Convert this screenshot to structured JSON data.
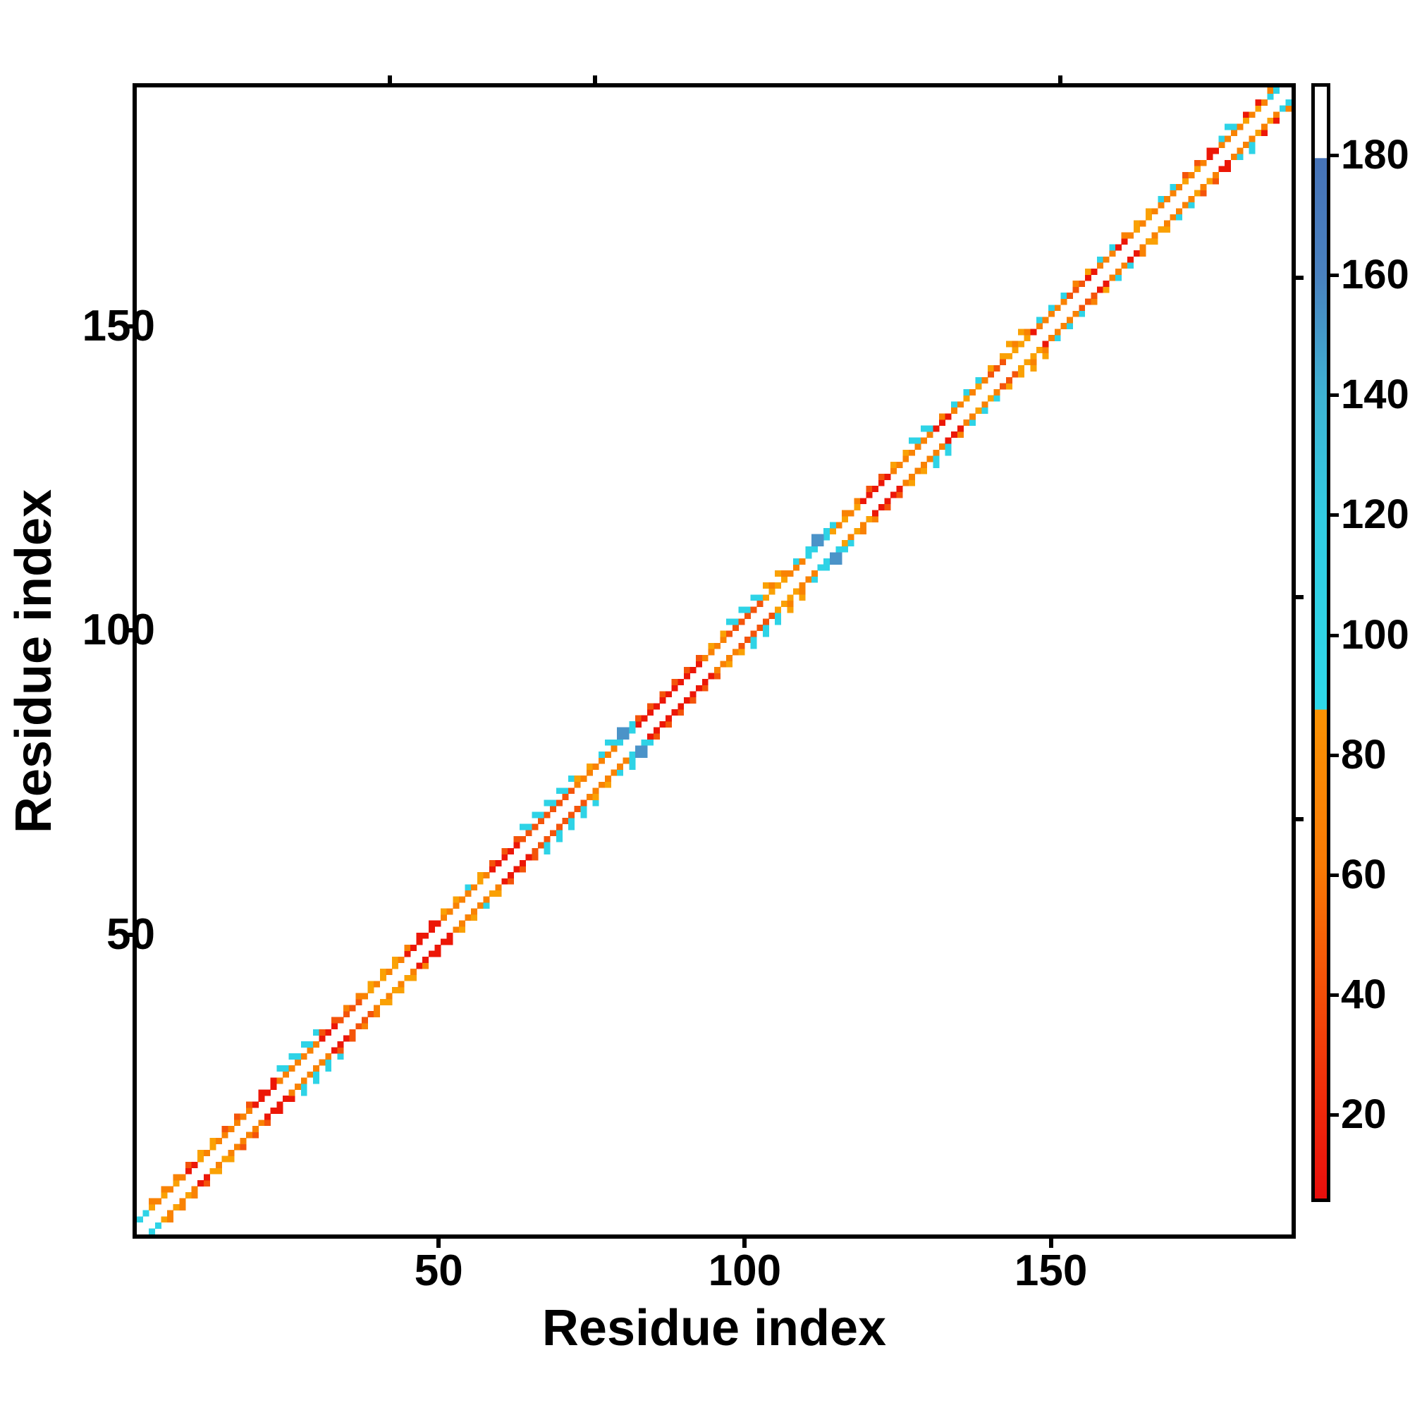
{
  "figure": {
    "background": "#ffffff"
  },
  "chart_data": {
    "type": "heatmap",
    "title": "",
    "xlabel": "Residue index",
    "ylabel": "Residue index",
    "n_residues": 190,
    "x_range": [
      0,
      190
    ],
    "y_range": [
      0,
      190
    ],
    "x_ticks": [
      {
        "value": 50,
        "label": "50"
      },
      {
        "value": 100,
        "label": "100"
      },
      {
        "value": 150,
        "label": "150"
      }
    ],
    "y_ticks": [
      {
        "value": 50,
        "label": "50"
      },
      {
        "value": 100,
        "label": "100"
      },
      {
        "value": 150,
        "label": "150"
      }
    ],
    "top_minor_ticks": [
      42,
      75.5,
      151.5
    ],
    "right_minor_ticks": [
      69,
      105.5,
      158
    ],
    "grid": false,
    "description": "Residue-residue contact map: near-diagonal contacts (|i-j| of 2-4) colored red/orange/cyan/blue; main diagonal empty (white).",
    "palette": {
      "red": "#EC1707",
      "orangered": "#F4540A",
      "orange": "#F98203",
      "amber": "#FAA104",
      "cyan": "#2ED3E6",
      "blue": "#4B93C8"
    },
    "band_segments": [
      {
        "from": 0,
        "to": 2,
        "c2": "cyan",
        "c3": null,
        "c4": null
      },
      {
        "from": 2,
        "to": 8,
        "c2": "mix",
        "c3": "orange",
        "c4": null
      },
      {
        "from": 8,
        "to": 10,
        "c2": "red",
        "c3": "orangered",
        "c4": null
      },
      {
        "from": 10,
        "to": 14,
        "c2": "mix",
        "c3": "amber",
        "c4": null
      },
      {
        "from": 14,
        "to": 19,
        "c2": "orange",
        "c3": "orangered",
        "c4": null
      },
      {
        "from": 19,
        "to": 23,
        "c2": "red",
        "c3": "red",
        "c4": null
      },
      {
        "from": 23,
        "to": 30,
        "c2": "orange",
        "c3": "cyan",
        "c4": "cyan"
      },
      {
        "from": 30,
        "to": 33,
        "c2": "red",
        "c3": "orangered",
        "c4": null
      },
      {
        "from": 33,
        "to": 37,
        "c2": "orangered",
        "c3": "orange",
        "c4": null
      },
      {
        "from": 37,
        "to": 44,
        "c2": "mix",
        "c3": "amber",
        "c4": null
      },
      {
        "from": 44,
        "to": 45,
        "c2": "red",
        "c3": "orange",
        "c4": null
      },
      {
        "from": 45,
        "to": 50,
        "c2": "red",
        "c3": "red",
        "c4": null
      },
      {
        "from": 50,
        "to": 53,
        "c2": "orange",
        "c3": "amber",
        "c4": null
      },
      {
        "from": 53,
        "to": 55,
        "c2": "orange",
        "c3": "cyan",
        "c4": null
      },
      {
        "from": 55,
        "to": 58,
        "c2": "mix",
        "c3": "amber",
        "c4": null
      },
      {
        "from": 58,
        "to": 63,
        "c2": "red",
        "c3": "orangered",
        "c4": null
      },
      {
        "from": 63,
        "to": 72,
        "c2": "orangered",
        "c3": "cyan",
        "c4": "cyan"
      },
      {
        "from": 72,
        "to": 76,
        "c2": "orange",
        "c3": "amber",
        "c4": null
      },
      {
        "from": 76,
        "to": 79,
        "c2": "orange",
        "c3": "cyan",
        "c4": "cyan"
      },
      {
        "from": 79,
        "to": 82,
        "c2": "cyan",
        "c3": "blue",
        "c4": null
      },
      {
        "from": 82,
        "to": 93,
        "c2": "red",
        "c3": "orangered",
        "c4": null
      },
      {
        "from": 93,
        "to": 97,
        "c2": "orange",
        "c3": "amber",
        "c4": null
      },
      {
        "from": 97,
        "to": 103,
        "c2": "orangered",
        "c3": "cyan",
        "c4": "cyan"
      },
      {
        "from": 103,
        "to": 107,
        "c2": "amber",
        "c3": "orange",
        "c4": "amber"
      },
      {
        "from": 107,
        "to": 110,
        "c2": "orange",
        "c3": "cyan",
        "c4": null
      },
      {
        "from": 110,
        "to": 114,
        "c2": "cyan",
        "c3": "blue",
        "c4": null
      },
      {
        "from": 114,
        "to": 119,
        "c2": "mix",
        "c3": "orange",
        "c4": null
      },
      {
        "from": 119,
        "to": 124,
        "c2": "red",
        "c3": "orangered",
        "c4": null
      },
      {
        "from": 124,
        "to": 127,
        "c2": "orange",
        "c3": "amber",
        "c4": null
      },
      {
        "from": 127,
        "to": 131,
        "c2": "orange",
        "c3": "cyan",
        "c4": "cyan"
      },
      {
        "from": 131,
        "to": 134,
        "c2": "red",
        "c3": "orange",
        "c4": null
      },
      {
        "from": 134,
        "to": 136,
        "c2": "orange",
        "c3": "cyan",
        "c4": null
      },
      {
        "from": 136,
        "to": 140,
        "c2": "mix",
        "c3": "cyan",
        "c4": null
      },
      {
        "from": 140,
        "to": 143,
        "c2": "orangered",
        "c3": "amber",
        "c4": null
      },
      {
        "from": 143,
        "to": 147,
        "c2": "amber",
        "c3": "orange",
        "c4": "amber"
      },
      {
        "from": 147,
        "to": 148,
        "c2": "red",
        "c3": "orange",
        "c4": null
      },
      {
        "from": 148,
        "to": 153,
        "c2": "orange",
        "c3": "cyan",
        "c4": null
      },
      {
        "from": 153,
        "to": 156,
        "c2": "orangered",
        "c3": "orange",
        "c4": null
      },
      {
        "from": 156,
        "to": 158,
        "c2": "red",
        "c3": "amber",
        "c4": null
      },
      {
        "from": 158,
        "to": 161,
        "c2": "orange",
        "c3": "cyan",
        "c4": null
      },
      {
        "from": 161,
        "to": 163,
        "c2": "red",
        "c3": "orange",
        "c4": null
      },
      {
        "from": 163,
        "to": 167,
        "c2": "mix",
        "c3": "amber",
        "c4": null
      },
      {
        "from": 167,
        "to": 171,
        "c2": "orange",
        "c3": "cyan",
        "c4": null
      },
      {
        "from": 171,
        "to": 176,
        "c2": "mix",
        "c3": "orangered",
        "c4": null
      },
      {
        "from": 176,
        "to": 178,
        "c2": "red",
        "c3": "red",
        "c4": null
      },
      {
        "from": 178,
        "to": 181,
        "c2": "orange",
        "c3": "cyan",
        "c4": "cyan"
      },
      {
        "from": 181,
        "to": 186,
        "c2": "mix",
        "c3": "red",
        "c4": null
      },
      {
        "from": 186,
        "to": 188,
        "c2": "cyan",
        "c3": "orange",
        "c4": null
      },
      {
        "from": 188,
        "to": 190,
        "c2": "amber",
        "c3": null,
        "c4": null
      }
    ],
    "patches": [
      [
        78,
        81,
        "cyan"
      ],
      [
        79,
        82,
        "blue"
      ],
      [
        80,
        83,
        "blue"
      ],
      [
        79,
        83,
        "blue"
      ],
      [
        80,
        82,
        "blue"
      ],
      [
        81,
        84,
        "cyan"
      ],
      [
        110,
        113,
        "cyan"
      ],
      [
        111,
        114,
        "blue"
      ],
      [
        112,
        115,
        "blue"
      ],
      [
        111,
        115,
        "blue"
      ],
      [
        112,
        114,
        "blue"
      ],
      [
        113,
        116,
        "cyan"
      ],
      [
        114,
        117,
        "cyan"
      ],
      [
        187,
        189,
        "cyan"
      ]
    ],
    "colorbar": {
      "tick_values": [
        180,
        160,
        140,
        120,
        100,
        80,
        60,
        40,
        20
      ],
      "tick_labels": [
        "180",
        "160",
        "140",
        "120",
        "100",
        "80",
        "60",
        "40",
        "20"
      ],
      "value_at_top": 192,
      "value_at_bottom": 7,
      "gradient_stops": [
        [
          0.0,
          "#FFFFFF"
        ],
        [
          0.064,
          "#FFFFFF"
        ],
        [
          0.0645,
          "#4673B8"
        ],
        [
          0.17,
          "#4981C0"
        ],
        [
          0.28,
          "#3EB4D4"
        ],
        [
          0.39,
          "#31CCE2"
        ],
        [
          0.56,
          "#2ED9E9"
        ],
        [
          0.5605,
          "#FB9303"
        ],
        [
          0.7,
          "#F97A04"
        ],
        [
          0.8,
          "#F55408"
        ],
        [
          0.9,
          "#F02F0A"
        ],
        [
          1.0,
          "#EA0E0C"
        ]
      ]
    }
  }
}
